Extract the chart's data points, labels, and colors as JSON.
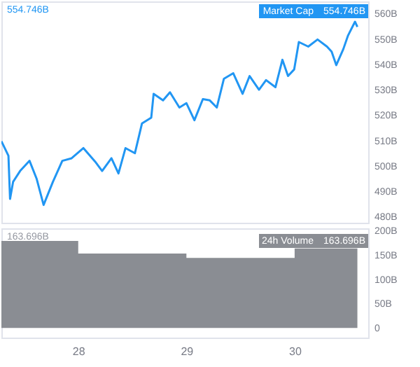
{
  "chart_data": [
    {
      "type": "line",
      "xlim": [
        27.29,
        30.68
      ],
      "xticks": [
        28,
        29,
        30
      ],
      "ylim": [
        477.6,
        564.8
      ],
      "yticks": [
        {
          "value": 480,
          "label": "480B"
        },
        {
          "value": 490,
          "label": "490B"
        },
        {
          "value": 500,
          "label": "500B"
        },
        {
          "value": 510,
          "label": "510B"
        },
        {
          "value": 520,
          "label": "520B"
        },
        {
          "value": 530,
          "label": "530B"
        },
        {
          "value": 540,
          "label": "540B"
        },
        {
          "value": 550,
          "label": "550B"
        },
        {
          "value": 560,
          "label": "560B"
        }
      ],
      "tick_labels": "y",
      "grid": false,
      "annotations": [
        "554.746B"
      ],
      "series": [
        {
          "name": "Market Cap",
          "color": "#2196f3",
          "x": [
            27.29,
            27.355,
            27.37,
            27.398,
            27.463,
            27.55,
            27.615,
            27.68,
            27.766,
            27.853,
            27.939,
            28.048,
            28.156,
            28.221,
            28.307,
            28.372,
            28.437,
            28.524,
            28.589,
            28.675,
            28.697,
            28.784,
            28.848,
            28.935,
            29.0,
            29.074,
            29.152,
            29.216,
            29.281,
            29.346,
            29.433,
            29.519,
            29.584,
            29.671,
            29.736,
            29.823,
            29.887,
            29.939,
            29.996,
            30.039,
            30.126,
            30.212,
            30.299,
            30.342,
            30.385,
            30.45,
            30.494,
            30.558,
            30.58
          ],
          "values": [
            509.7,
            504,
            487,
            493.7,
            498,
            502,
            495,
            484.6,
            493.7,
            502,
            503,
            507,
            501.7,
            498,
            503,
            497,
            507,
            505,
            516.7,
            519,
            528.4,
            525.8,
            529,
            523,
            524.7,
            518,
            526.3,
            525.8,
            523,
            534.3,
            536.5,
            528.4,
            535.4,
            530,
            533.8,
            531,
            541.8,
            535.4,
            538,
            548.8,
            547,
            549.8,
            547,
            545,
            539.7,
            546,
            551.4,
            556.8,
            554.746
          ],
          "value_labels": [
            null,
            null,
            null,
            null,
            null,
            null,
            null,
            null,
            null,
            null,
            null,
            null,
            null,
            null,
            null,
            null,
            null,
            null,
            null,
            null,
            null,
            null,
            null,
            null,
            null,
            null,
            null,
            null,
            null,
            null,
            null,
            null,
            null,
            null,
            null,
            null,
            null,
            null,
            null,
            null,
            null,
            null,
            null,
            null,
            null,
            null,
            null,
            null,
            "554.746B"
          ]
        }
      ]
    },
    {
      "type": "area",
      "xlim": [
        27.29,
        30.68
      ],
      "xticks": [
        28,
        29,
        30
      ],
      "ylim": [
        -20,
        205
      ],
      "yticks": [
        0,
        {
          "value": 50,
          "label": "50B"
        },
        {
          "value": 100,
          "label": "100B"
        },
        {
          "value": 150,
          "label": "150B"
        },
        {
          "value": 200,
          "label": "200B"
        }
      ],
      "grid": false,
      "annotations": [
        "163.696B"
      ],
      "series": [
        {
          "name": "24h Volume",
          "color": "#8a8d93",
          "x": [
            27.29,
            28,
            28,
            29,
            29,
            30,
            30,
            30.58
          ],
          "values": [
            179,
            179,
            153,
            153,
            144,
            144,
            163.696,
            163.696
          ],
          "value_labels": [
            null,
            null,
            null,
            null,
            null,
            null,
            null,
            "163.696B"
          ]
        }
      ]
    }
  ]
}
